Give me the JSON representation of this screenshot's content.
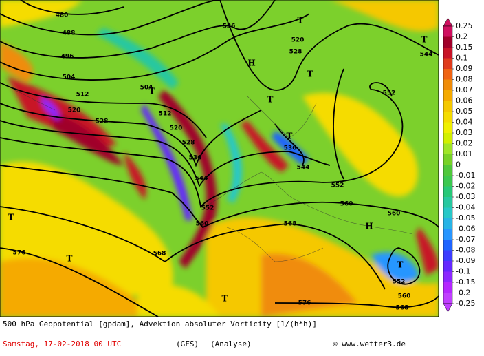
{
  "map": {
    "contour_labels": [
      "480",
      "488",
      "496",
      "504",
      "512",
      "520",
      "528",
      "504",
      "512",
      "520",
      "528",
      "536",
      "544",
      "552",
      "560",
      "568",
      "576",
      "536",
      "520",
      "528",
      "536",
      "544",
      "552",
      "560",
      "568",
      "560",
      "552",
      "544",
      "576",
      "568",
      "560",
      "552"
    ],
    "markers": [
      "T",
      "T",
      "H",
      "T",
      "T",
      "T",
      "T",
      "T",
      "T",
      "H",
      "T",
      "T"
    ]
  },
  "colorbar": {
    "labels": [
      "0.25",
      "0.2",
      "0.15",
      "0.1",
      "0.09",
      "0.08",
      "0.07",
      "0.06",
      "0.05",
      "0.04",
      "0.03",
      "0.02",
      "0.01",
      "0",
      "-0.01",
      "-0.02",
      "-0.03",
      "-0.04",
      "-0.05",
      "-0.06",
      "-0.07",
      "-0.08",
      "-0.09",
      "-0.1",
      "-0.15",
      "-0.2",
      "-0.25"
    ],
    "colors": [
      "#d01060",
      "#a0002a",
      "#c81428",
      "#e03c1e",
      "#f06414",
      "#f08c0a",
      "#f5aa00",
      "#f5c800",
      "#f5dc00",
      "#f0f000",
      "#d2f000",
      "#a0e628",
      "#78d228",
      "#50c83c",
      "#3cc850",
      "#28c878",
      "#28c8a0",
      "#28c8c8",
      "#28b4e6",
      "#2896ff",
      "#1e64ff",
      "#3c3cff",
      "#6428ff",
      "#8c28ff",
      "#b428ff",
      "#c040ff"
    ]
  },
  "footer": {
    "line1": "500 hPa Geopotential [gpdam], Advektion absoluter Vorticity [1/(h*h)]",
    "date": "Samstag, 17-02-2018  00 UTC",
    "model": "(GFS)",
    "run": "(Analyse)",
    "credit": "© www.wetter3.de"
  }
}
